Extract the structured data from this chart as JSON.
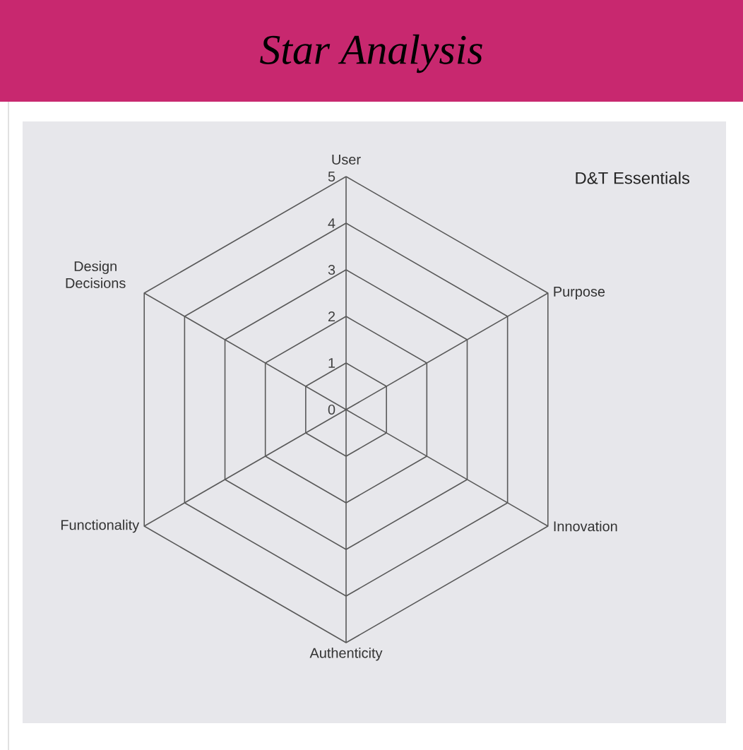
{
  "chart_data": {
    "type": "radar",
    "title": "Star Analysis",
    "categories": [
      "User",
      "Purpose",
      "Innovation",
      "Authenticity",
      "Functionality",
      "Design Decisions"
    ],
    "ylim": [
      0,
      5
    ],
    "yticks": [
      0,
      1,
      2,
      3,
      4,
      5
    ],
    "grid": true,
    "annotations": [
      "D&T Essentials"
    ]
  }
}
